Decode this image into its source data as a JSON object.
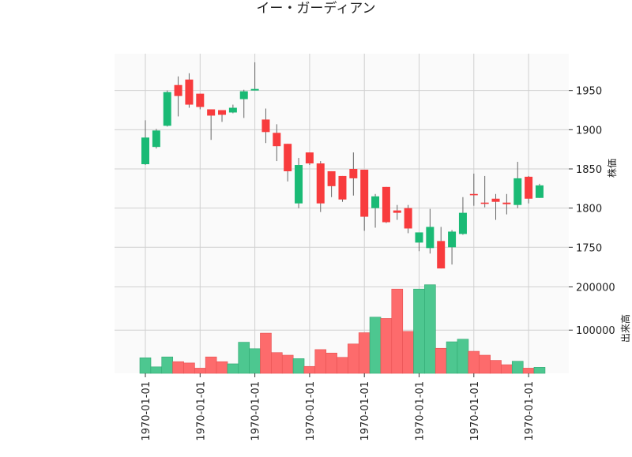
{
  "chart_data": {
    "type": "candlestick",
    "title": "イー・ガーディアン",
    "price_panel": {
      "ylabel": "株価",
      "ylim": [
        1705,
        1997
      ],
      "yticks": [
        1750,
        1800,
        1850,
        1900,
        1950
      ],
      "grid": true,
      "candles": [
        {
          "open": 1856,
          "high": 1912,
          "low": 1855,
          "close": 1890
        },
        {
          "open": 1878,
          "high": 1901,
          "low": 1876,
          "close": 1899
        },
        {
          "open": 1905,
          "high": 1950,
          "low": 1904,
          "close": 1948
        },
        {
          "open": 1957,
          "high": 1968,
          "low": 1917,
          "close": 1943
        },
        {
          "open": 1964,
          "high": 1972,
          "low": 1928,
          "close": 1932
        },
        {
          "open": 1946,
          "high": 1946,
          "low": 1926,
          "close": 1929
        },
        {
          "open": 1926,
          "high": 1926,
          "low": 1887,
          "close": 1918
        },
        {
          "open": 1925,
          "high": 1925,
          "low": 1910,
          "close": 1919
        },
        {
          "open": 1922,
          "high": 1932,
          "low": 1921,
          "close": 1928
        },
        {
          "open": 1939,
          "high": 1951,
          "low": 1915,
          "close": 1949
        },
        {
          "open": 1950,
          "high": 1986,
          "low": 1950,
          "close": 1952
        },
        {
          "open": 1913,
          "high": 1927,
          "low": 1883,
          "close": 1897
        },
        {
          "open": 1896,
          "high": 1907,
          "low": 1860,
          "close": 1879
        },
        {
          "open": 1882,
          "high": 1882,
          "low": 1834,
          "close": 1847
        },
        {
          "open": 1806,
          "high": 1864,
          "low": 1800,
          "close": 1855
        },
        {
          "open": 1871,
          "high": 1871,
          "low": 1855,
          "close": 1857
        },
        {
          "open": 1857,
          "high": 1860,
          "low": 1795,
          "close": 1806
        },
        {
          "open": 1847,
          "high": 1847,
          "low": 1814,
          "close": 1828
        },
        {
          "open": 1841,
          "high": 1841,
          "low": 1808,
          "close": 1811
        },
        {
          "open": 1850,
          "high": 1871,
          "low": 1816,
          "close": 1838
        },
        {
          "open": 1849,
          "high": 1849,
          "low": 1771,
          "close": 1789
        },
        {
          "open": 1800,
          "high": 1818,
          "low": 1775,
          "close": 1815
        },
        {
          "open": 1827,
          "high": 1827,
          "low": 1781,
          "close": 1782
        },
        {
          "open": 1797,
          "high": 1804,
          "low": 1785,
          "close": 1794
        },
        {
          "open": 1800,
          "high": 1804,
          "low": 1768,
          "close": 1774
        },
        {
          "open": 1756,
          "high": 1769,
          "low": 1745,
          "close": 1769
        },
        {
          "open": 1749,
          "high": 1799,
          "low": 1742,
          "close": 1776
        },
        {
          "open": 1758,
          "high": 1776,
          "low": 1723,
          "close": 1723
        },
        {
          "open": 1750,
          "high": 1772,
          "low": 1728,
          "close": 1770
        },
        {
          "open": 1767,
          "high": 1814,
          "low": 1766,
          "close": 1794
        },
        {
          "open": 1818,
          "high": 1844,
          "low": 1803,
          "close": 1817
        },
        {
          "open": 1807,
          "high": 1841,
          "low": 1801,
          "close": 1806
        },
        {
          "open": 1812,
          "high": 1818,
          "low": 1785,
          "close": 1808
        },
        {
          "open": 1807,
          "high": 1818,
          "low": 1792,
          "close": 1805
        },
        {
          "open": 1804,
          "high": 1859,
          "low": 1800,
          "close": 1838
        },
        {
          "open": 1840,
          "high": 1841,
          "low": 1806,
          "close": 1812
        },
        {
          "open": 1813,
          "high": 1831,
          "low": 1813,
          "close": 1829
        }
      ]
    },
    "volume_panel": {
      "ylabel": "出来高",
      "ylim": [
        0,
        210000
      ],
      "yticks": [
        100000,
        200000
      ],
      "yticklabels": [
        "100000",
        "200000"
      ],
      "grid": true,
      "values": [
        36000,
        15000,
        38000,
        27000,
        24000,
        12000,
        38000,
        27000,
        22000,
        72000,
        57000,
        93000,
        48000,
        42000,
        34000,
        16000,
        55000,
        47000,
        37000,
        68000,
        94000,
        130000,
        127000,
        195000,
        97000,
        195000,
        205000,
        58000,
        73000,
        79000,
        51000,
        42000,
        30000,
        20000,
        28000,
        12000,
        14000
      ]
    },
    "x_tick_labels": [
      "1970-01-01",
      "1970-01-01",
      "1970-01-01",
      "1970-01-01",
      "1970-01-01",
      "1970-01-01",
      "1970-01-01",
      "1970-01-01"
    ],
    "x_tick_indices": [
      0,
      5,
      10,
      15,
      20,
      25,
      30,
      35
    ],
    "colors": {
      "up": "#1aba75",
      "down": "#f83b3d",
      "volume_up": "#4dc790",
      "volume_down": "#fd6b6c",
      "wick": "#666666",
      "panel_bg": "#fafafa",
      "grid": "#d0d0d0"
    }
  }
}
